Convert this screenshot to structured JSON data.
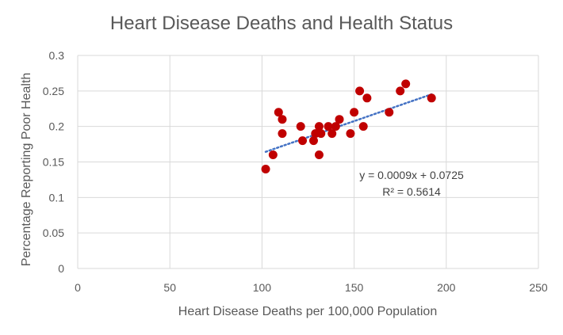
{
  "chart_data": {
    "type": "scatter",
    "title": "Heart Disease Deaths and Health Status",
    "xlabel": "Heart Disease Deaths per 100,000 Population",
    "ylabel": "Percentage Reporting Poor Health",
    "xlim": [
      0,
      250
    ],
    "ylim": [
      0,
      0.3
    ],
    "x_ticks": [
      0,
      50,
      100,
      150,
      200,
      250
    ],
    "y_ticks": [
      0,
      0.05,
      0.1,
      0.15,
      0.2,
      0.25,
      0.3
    ],
    "x_tick_labels": [
      "0",
      "50",
      "100",
      "150",
      "200",
      "250"
    ],
    "y_tick_labels": [
      "0",
      "0.05",
      "0.1",
      "0.15",
      "0.2",
      "0.25",
      "0.3"
    ],
    "grid": true,
    "marker_color": "#c00000",
    "trendline_color": "#4472c4",
    "series": [
      {
        "points": [
          [
            102,
            0.14
          ],
          [
            106,
            0.16
          ],
          [
            109,
            0.22
          ],
          [
            111,
            0.21
          ],
          [
            111,
            0.19
          ],
          [
            121,
            0.2
          ],
          [
            122,
            0.18
          ],
          [
            128,
            0.18
          ],
          [
            129,
            0.19
          ],
          [
            131,
            0.16
          ],
          [
            131,
            0.2
          ],
          [
            132,
            0.19
          ],
          [
            136,
            0.2
          ],
          [
            138,
            0.19
          ],
          [
            140,
            0.2
          ],
          [
            142,
            0.21
          ],
          [
            148,
            0.19
          ],
          [
            150,
            0.22
          ],
          [
            153,
            0.25
          ],
          [
            155,
            0.2
          ],
          [
            157,
            0.24
          ],
          [
            169,
            0.22
          ],
          [
            175,
            0.25
          ],
          [
            178,
            0.26
          ],
          [
            192,
            0.24
          ]
        ]
      }
    ],
    "trendline": {
      "type": "linear",
      "slope": 0.0009,
      "intercept": 0.0725,
      "x_start": 102,
      "x_end": 192,
      "equation_text": "y = 0.0009x + 0.0725",
      "r2_text": "R² = 0.5614"
    }
  }
}
